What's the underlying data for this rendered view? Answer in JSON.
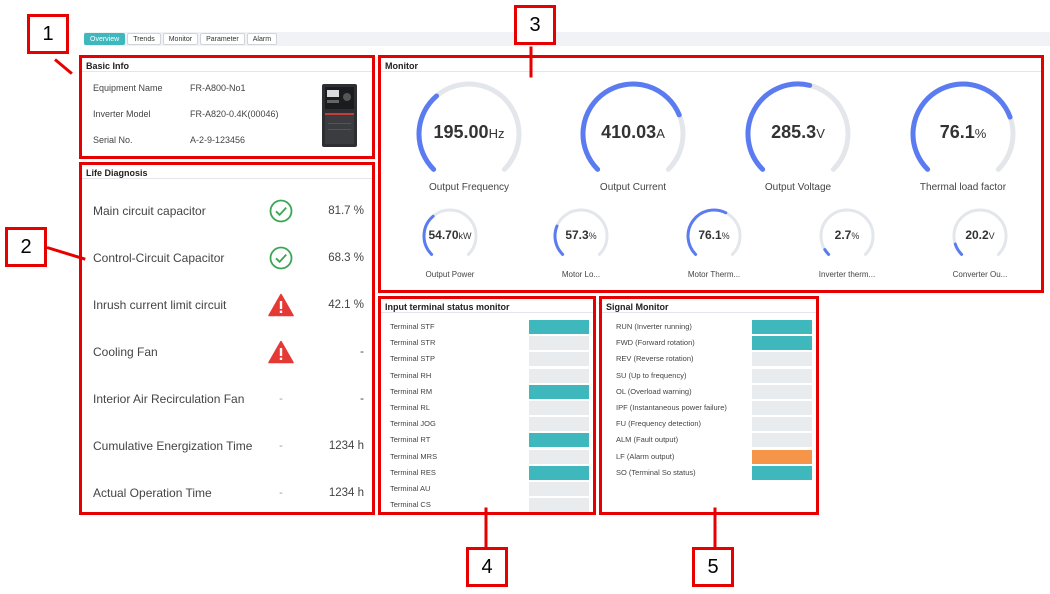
{
  "tabs": [
    "Overview",
    "Trends",
    "Monitor",
    "Parameter",
    "Alarm"
  ],
  "basic_info": {
    "title": "Basic Info",
    "rows": [
      {
        "key": "Equipment Name",
        "value": "FR-A800-No1"
      },
      {
        "key": "Inverter Model",
        "value": "FR-A820-0.4K(00046)"
      },
      {
        "key": "Serial No.",
        "value": "A-2-9-123456"
      }
    ]
  },
  "life": {
    "title": "Life Diagnosis",
    "rows": [
      {
        "label": "Main circuit capacitor",
        "status": "ok",
        "value": "81.7 %"
      },
      {
        "label": "Control-Circuit Capacitor",
        "status": "ok",
        "value": "68.3 %"
      },
      {
        "label": "Inrush current limit circuit",
        "status": "warn",
        "value": "42.1 %"
      },
      {
        "label": "Cooling Fan",
        "status": "warn",
        "value": "-"
      },
      {
        "label": "Interior Air Recirculation Fan",
        "status": "-",
        "value": "-"
      },
      {
        "label": "Cumulative Energization Time",
        "status": "-",
        "value": "1234 h"
      },
      {
        "label": "Actual Operation Time",
        "status": "-",
        "value": "1234 h"
      }
    ]
  },
  "monitor": {
    "title": "Monitor",
    "big": [
      {
        "value": "195.00",
        "unit": "Hz",
        "label": "Output Frequency",
        "fraction": 0.35
      },
      {
        "value": "410.03",
        "unit": "A",
        "label": "Output Current",
        "fraction": 0.75
      },
      {
        "value": "285.3",
        "unit": "V",
        "label": "Output Voltage",
        "fraction": 0.55
      },
      {
        "value": "76.1",
        "unit": "%",
        "label": "Thermal load factor",
        "fraction": 0.76
      }
    ],
    "small": [
      {
        "value": "54.70",
        "unit": "kW",
        "label": "Output Power",
        "fraction": 0.35
      },
      {
        "value": "57.3",
        "unit": "%",
        "label": "Motor Lo...",
        "fraction": 0.25
      },
      {
        "value": "76.1",
        "unit": "%",
        "label": "Motor Therm...",
        "fraction": 0.6
      },
      {
        "value": "2.7",
        "unit": "%",
        "label": "Inverter therm...",
        "fraction": 0.05
      },
      {
        "value": "20.2",
        "unit": "V",
        "label": "Converter Ou...",
        "fraction": 0.1
      }
    ]
  },
  "terminals": {
    "title": "Input terminal status monitor",
    "rows": [
      {
        "label": "Terminal STF",
        "on": true
      },
      {
        "label": "Terminal STR",
        "on": false
      },
      {
        "label": "Terminal STP",
        "on": false
      },
      {
        "label": "Terminal RH",
        "on": false
      },
      {
        "label": "Terminal RM",
        "on": true
      },
      {
        "label": "Terminal RL",
        "on": false
      },
      {
        "label": "Terminal JOG",
        "on": false
      },
      {
        "label": "Terminal RT",
        "on": true
      },
      {
        "label": "Terminal MRS",
        "on": false
      },
      {
        "label": "Terminal RES",
        "on": true
      },
      {
        "label": "Terminal AU",
        "on": false
      },
      {
        "label": "Terminal CS",
        "on": false
      }
    ]
  },
  "signals": {
    "title": "Signal Monitor",
    "rows": [
      {
        "label": "RUN (Inverter running)",
        "state": "on"
      },
      {
        "label": "FWD (Forward rotation)",
        "state": "on"
      },
      {
        "label": "REV (Reverse rotation)",
        "state": "off"
      },
      {
        "label": "SU (Up to frequency)",
        "state": "off"
      },
      {
        "label": "OL (Overload warning)",
        "state": "off"
      },
      {
        "label": "IPF (Instantaneous power failure)",
        "state": "off"
      },
      {
        "label": "FU (Frequency detection)",
        "state": "off"
      },
      {
        "label": "ALM (Fault output)",
        "state": "off"
      },
      {
        "label": "LF (Alarm output)",
        "state": "alarm"
      },
      {
        "label": "SO (Terminal So status)",
        "state": "on"
      }
    ]
  },
  "callouts": [
    "1",
    "2",
    "3",
    "4",
    "5"
  ],
  "colors": {
    "accent": "#3fb8bd",
    "gauge_fill": "#5b7cf0",
    "gauge_track": "#e3e6ea",
    "ok": "#3aa655",
    "warn": "#e53935",
    "alarm": "#f5954a",
    "callout_border": "#e60000"
  }
}
